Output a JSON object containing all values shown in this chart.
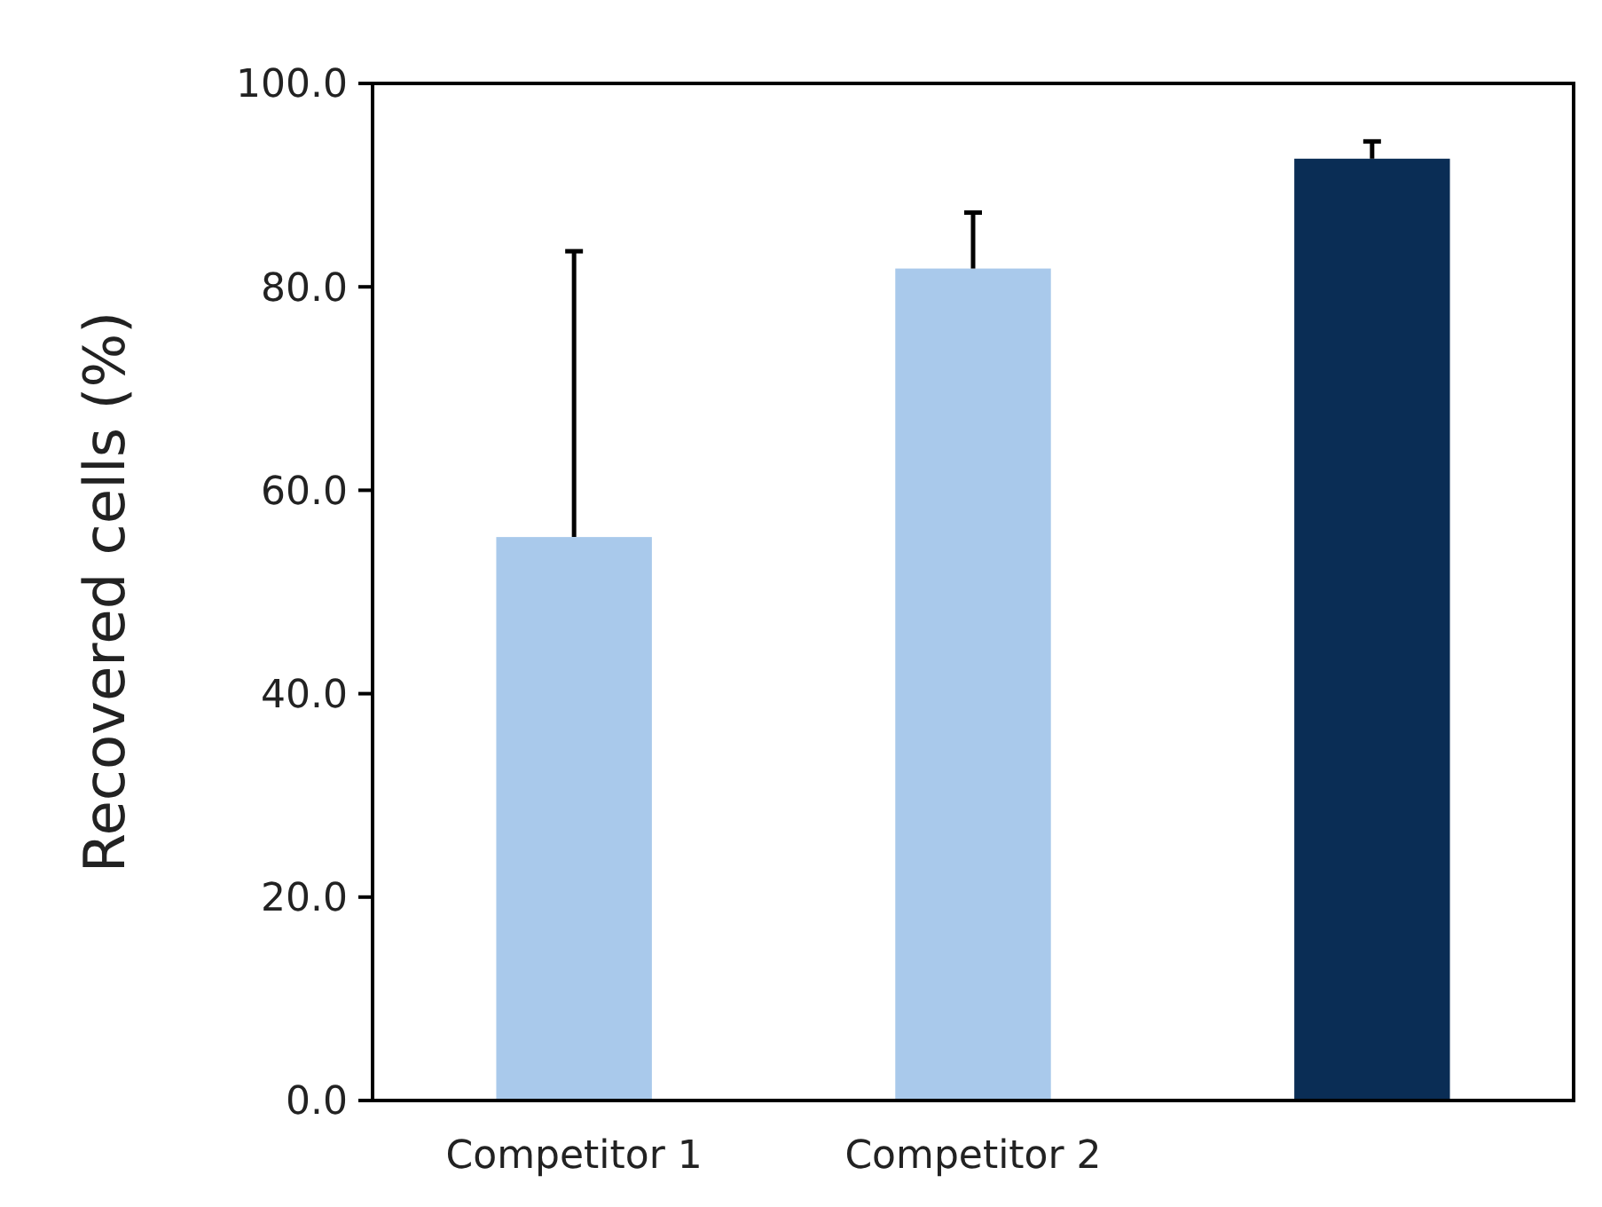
{
  "chart_data": {
    "type": "bar",
    "ylabel": "Recovered cells (%)",
    "categories": [
      "Competitor 1",
      "Competitor 2",
      null
    ],
    "values": [
      55.4,
      81.8,
      92.6
    ],
    "colors": [
      "#a9c9eb",
      "#a9c9eb",
      "#0a2d55"
    ],
    "errors": [
      [
        55.4,
        83.5
      ],
      [
        81.8,
        87.3
      ],
      [
        92.6,
        94.3
      ]
    ],
    "ylim": [
      0,
      100
    ],
    "yticks": [
      {
        "value": 0,
        "label": "0.0"
      },
      {
        "value": 20,
        "label": "20.0"
      },
      {
        "value": 40,
        "label": "40.0"
      },
      {
        "value": 60,
        "label": "60.0"
      },
      {
        "value": 80,
        "label": "80.0"
      },
      {
        "value": 100,
        "label": "100.0"
      }
    ],
    "grid": false
  }
}
